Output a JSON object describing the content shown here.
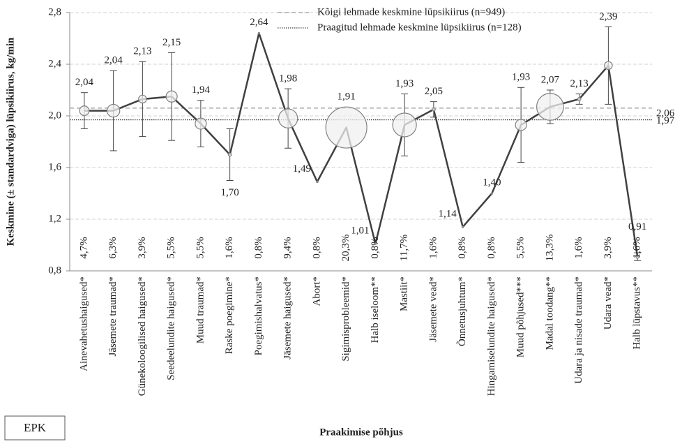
{
  "chart_data": {
    "type": "line",
    "y_label": "Keskmine (± standardviga)  lüpsikiirus, kg/min",
    "x_label": "Praakimise põhjus",
    "badge": "EPK",
    "categories": [
      "Ainevahetushaigused*",
      "Jäsemete traumad*",
      "Günekoloogilised haigused*",
      "Seedeelundite haigused*",
      "Muud traumad*",
      "Raske poegimine*",
      "Poegimishalvatus*",
      "Jäsemete haigused*",
      "Abort*",
      "Sigimisprobleemid*",
      "Halb iseloom**",
      "Mastiit*",
      "Jäsemete vead*",
      "Õnnetusjuhtum*",
      "Hingamiselundite haigused*",
      "Muud põhjused***",
      "Madal toodang**",
      "Udara ja nisade traumad*",
      "Udara vead*",
      "Halb lüpstavus**"
    ],
    "series": [
      {
        "color": "#404040",
        "values": [
          2.04,
          2.04,
          2.13,
          2.15,
          1.94,
          1.7,
          2.64,
          1.98,
          1.49,
          1.91,
          1.01,
          1.93,
          2.05,
          1.14,
          1.4,
          1.93,
          2.07,
          2.13,
          2.39,
          0.91
        ],
        "value_labels": [
          "2,04",
          "2,04",
          "2,13",
          "2,15",
          "1,94",
          "1,70",
          "2,64",
          "1,98",
          "1,49",
          "1,91",
          "1,01",
          "1,93",
          "2,05",
          "1,14",
          "1,40",
          "1,93",
          "2,07",
          "2,13",
          "2,39",
          "0,91"
        ],
        "errors": [
          0.14,
          0.31,
          0.29,
          0.34,
          0.18,
          0.2,
          null,
          0.23,
          null,
          null,
          null,
          0.24,
          0.06,
          null,
          null,
          0.29,
          0.13,
          0.04,
          0.3,
          0.03
        ]
      }
    ],
    "share_values": [
      4.7,
      6.3,
      3.9,
      5.5,
      5.5,
      1.6,
      0.8,
      9.4,
      0.8,
      20.3,
      0.8,
      11.7,
      1.6,
      0.8,
      0.8,
      5.5,
      13.3,
      1.6,
      3.9,
      1.6
    ],
    "share_labels": [
      "4,7%",
      "6,3%",
      "3,9%",
      "5,5%",
      "5,5%",
      "1,6%",
      "0,8%",
      "9,4%",
      "0,8%",
      "20,3%",
      "0,8%",
      "11,7%",
      "1,6%",
      "0,8%",
      "0,8%",
      "5,5%",
      "13,3%",
      "1,6%",
      "3,9%",
      "1,6%"
    ],
    "reference_lines": [
      {
        "name": "Kõigi lehmade keskmine lüpsikiirus (n=949)",
        "value": 2.06,
        "label": "2,06",
        "style": "dashed",
        "color": "#999999"
      },
      {
        "name": "Praagitud lehmade keskmine lüpsikiirus (n=128)",
        "value": 1.97,
        "label": "1,97",
        "style": "dotted",
        "color": "#404040"
      }
    ],
    "ylim": [
      0.8,
      2.8
    ],
    "yticks": [
      {
        "value": 0.8,
        "label": "0,8"
      },
      {
        "value": 1.2,
        "label": "1,2"
      },
      {
        "value": 1.6,
        "label": "1,6"
      },
      {
        "value": 2.0,
        "label": "2,0"
      },
      {
        "value": 2.4,
        "label": "2,4"
      },
      {
        "value": 2.8,
        "label": "2,8"
      }
    ],
    "grid": true
  }
}
